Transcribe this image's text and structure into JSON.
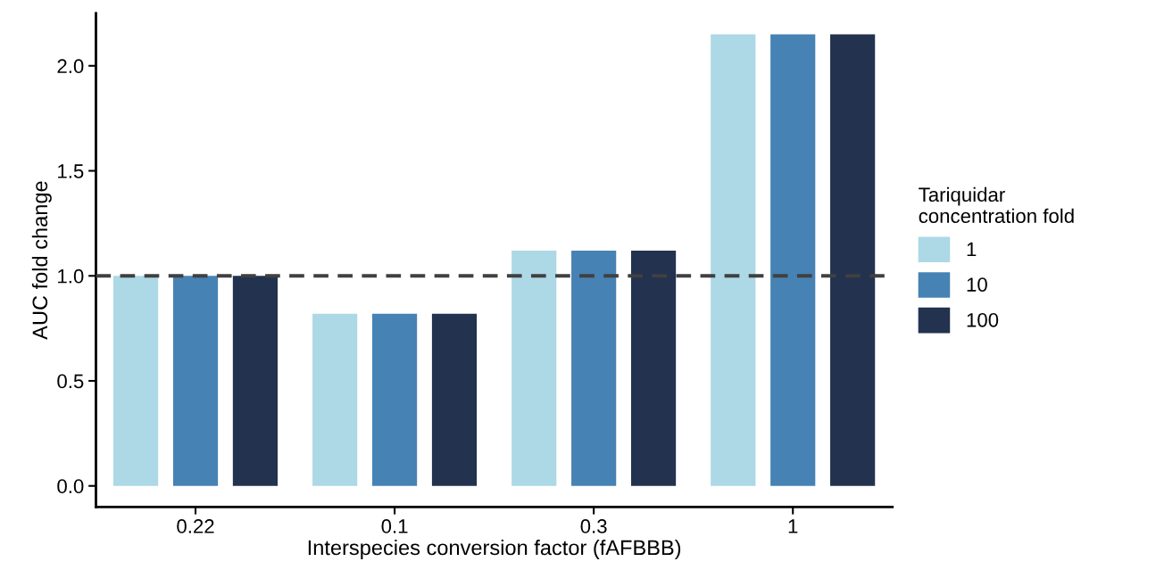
{
  "chart_data": {
    "type": "bar",
    "xlabel": "Interspecies conversion factor (fAFBBB)",
    "ylabel": "AUC fold change",
    "legend_title": "Tariquidar\nconcentration fold",
    "categories": [
      "0.22",
      "0.1",
      "0.3",
      "1"
    ],
    "series": [
      {
        "name": "1",
        "color": "#add8e6",
        "values": [
          1.0,
          0.82,
          1.12,
          2.15
        ]
      },
      {
        "name": "10",
        "color": "#4682b4",
        "values": [
          1.0,
          0.82,
          1.12,
          2.15
        ]
      },
      {
        "name": "100",
        "color": "#22324f",
        "values": [
          1.0,
          0.82,
          1.12,
          2.15
        ]
      }
    ],
    "ylim": [
      -0.1,
      2.25
    ],
    "yticks": [
      {
        "value": 0,
        "label": "0.0"
      },
      0.5,
      {
        "value": 1,
        "label": "1.0"
      },
      1.5,
      {
        "value": 2,
        "label": "2.0"
      }
    ],
    "ref_lines": [
      {
        "axis": "y",
        "value": 1.0,
        "color": "#404040",
        "line_style": "dashed"
      }
    ],
    "grid": false,
    "legend": "right"
  }
}
